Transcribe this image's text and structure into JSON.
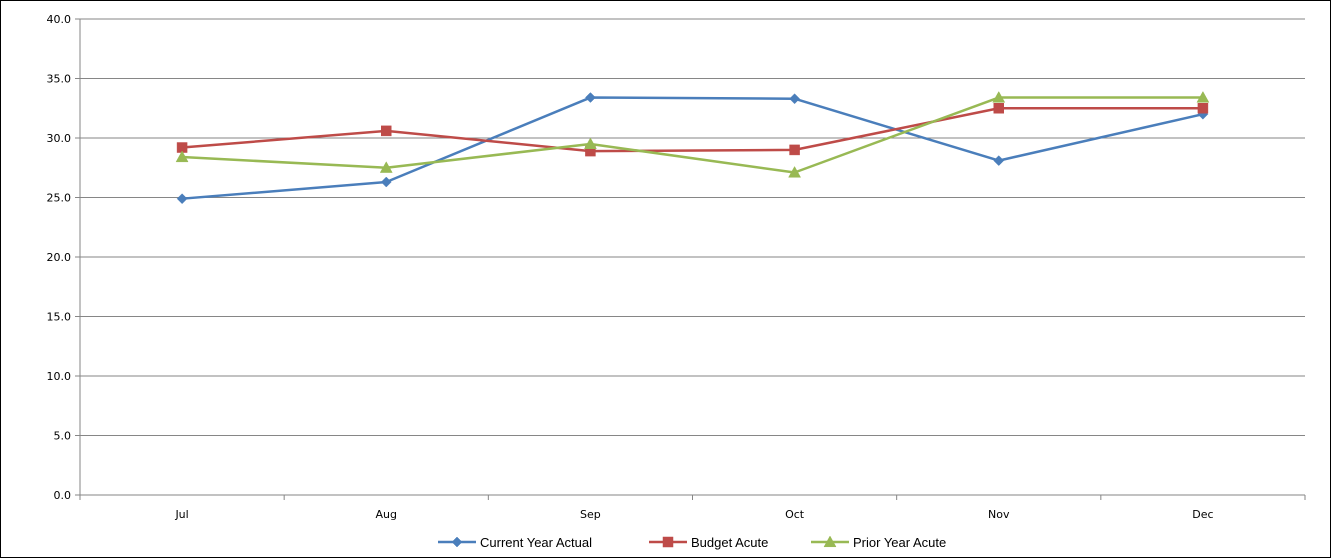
{
  "chart_data": {
    "type": "line",
    "title": "",
    "xlabel": "",
    "ylabel": "",
    "categories": [
      "Jul",
      "Aug",
      "Sep",
      "Oct",
      "Nov",
      "Dec"
    ],
    "ylim": [
      0,
      40
    ],
    "yticks": [
      0,
      5,
      10,
      15,
      20,
      25,
      30,
      35,
      40
    ],
    "ytick_labels": [
      "0.0",
      "5.0",
      "10.0",
      "15.0",
      "20.0",
      "25.0",
      "30.0",
      "35.0",
      "40.0"
    ],
    "grid": true,
    "legend_position": "bottom",
    "series": [
      {
        "name": "Current Year Actual",
        "color": "#4a7ebb",
        "marker": "diamond",
        "values": [
          24.9,
          26.3,
          33.4,
          33.3,
          28.1,
          32.0
        ]
      },
      {
        "name": "Budget Acute",
        "color": "#be4b48",
        "marker": "square",
        "values": [
          29.2,
          30.6,
          28.9,
          29.0,
          32.5,
          32.5
        ]
      },
      {
        "name": "Prior Year Acute",
        "color": "#98b954",
        "marker": "triangle",
        "values": [
          28.4,
          27.5,
          29.5,
          27.1,
          33.4,
          33.4
        ]
      }
    ]
  }
}
